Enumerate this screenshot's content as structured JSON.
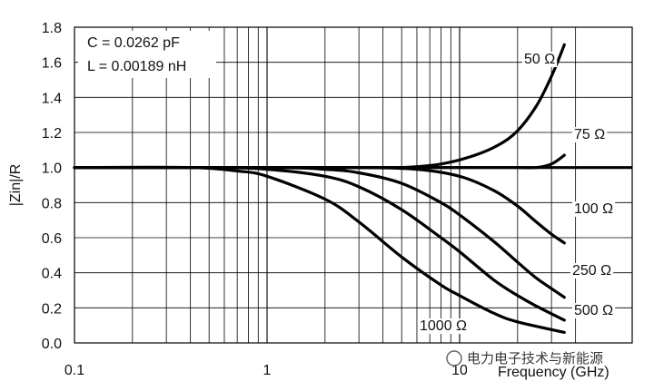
{
  "chart_data": {
    "type": "line",
    "ylabel": "|Zin|/R",
    "xlabel": "Frequency (GHz)",
    "x_scale": "log",
    "xlim": [
      0.1,
      40
    ],
    "ylim": [
      0.0,
      1.8
    ],
    "x_tick_labels": [
      "0.1",
      "1",
      "10"
    ],
    "y_tick_labels": [
      "1.8",
      "1.6",
      "1.4",
      "1.2",
      "1.0",
      "0.8",
      "0.6",
      "0.4",
      "0.2",
      "0.0"
    ],
    "grid": true,
    "annotations": [
      "C = 0.0262 pF",
      "L = 0.00189 nH"
    ],
    "line_color": "#000000",
    "series": [
      {
        "name": "50 Ω",
        "x": [
          0.1,
          1,
          3,
          5,
          8,
          12,
          16,
          20,
          25,
          30,
          35
        ],
        "y": [
          1.0,
          1.0,
          1.0,
          1.0,
          1.02,
          1.07,
          1.13,
          1.21,
          1.35,
          1.52,
          1.7
        ]
      },
      {
        "name": "75 Ω",
        "x": [
          0.1,
          1,
          10,
          20,
          25,
          30,
          35
        ],
        "y": [
          1.0,
          1.0,
          1.0,
          1.0,
          1.0,
          1.02,
          1.07
        ]
      },
      {
        "name": "100 Ω",
        "x": [
          0.1,
          1,
          3,
          6,
          10,
          15,
          20,
          25,
          30,
          35
        ],
        "y": [
          1.0,
          1.0,
          1.0,
          0.99,
          0.95,
          0.87,
          0.78,
          0.69,
          0.62,
          0.57
        ]
      },
      {
        "name": "250 Ω",
        "x": [
          0.1,
          1,
          2,
          3,
          5,
          8,
          10,
          15,
          20,
          25,
          30,
          35
        ],
        "y": [
          1.0,
          1.0,
          0.99,
          0.97,
          0.91,
          0.8,
          0.73,
          0.58,
          0.46,
          0.37,
          0.31,
          0.26
        ]
      },
      {
        "name": "500 Ω",
        "x": [
          0.1,
          0.5,
          1,
          2,
          3,
          5,
          8,
          10,
          15,
          20,
          25,
          35
        ],
        "y": [
          1.0,
          1.0,
          0.99,
          0.95,
          0.89,
          0.76,
          0.6,
          0.52,
          0.36,
          0.27,
          0.21,
          0.13
        ]
      },
      {
        "name": "1000 Ω",
        "x": [
          0.1,
          0.4,
          0.7,
          1,
          2,
          3,
          5,
          8,
          10,
          15,
          20,
          35
        ],
        "y": [
          1.0,
          1.0,
          0.98,
          0.95,
          0.82,
          0.69,
          0.49,
          0.33,
          0.27,
          0.17,
          0.12,
          0.06
        ]
      }
    ]
  },
  "watermark": "电力电子技术与新能源"
}
